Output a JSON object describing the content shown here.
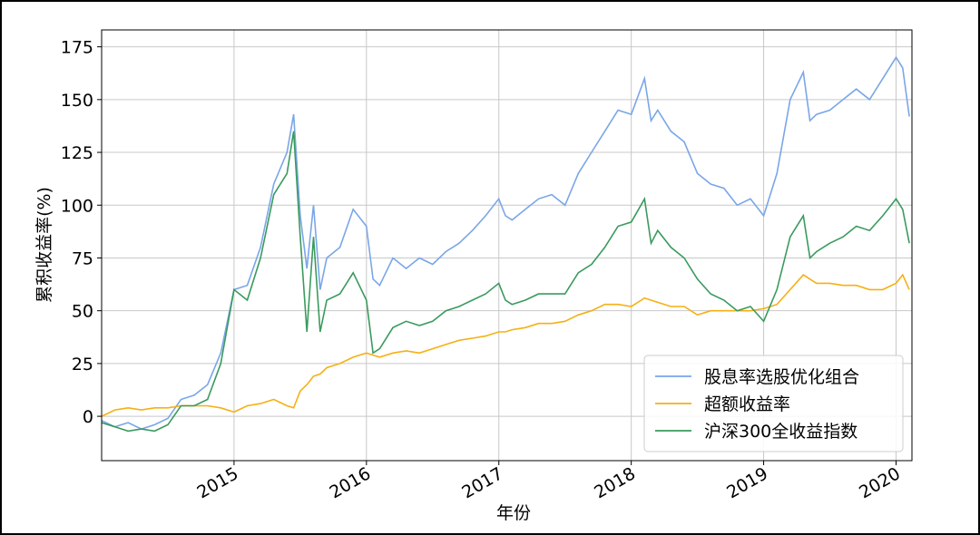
{
  "chart_data": {
    "type": "line",
    "x_label": "年份",
    "y_label": "累积收益率(%)",
    "x": [
      2014.0,
      2014.1,
      2014.2,
      2014.3,
      2014.4,
      2014.5,
      2014.6,
      2014.7,
      2014.8,
      2014.9,
      2015.0,
      2015.1,
      2015.2,
      2015.3,
      2015.4,
      2015.45,
      2015.5,
      2015.55,
      2015.6,
      2015.65,
      2015.7,
      2015.8,
      2015.9,
      2016.0,
      2016.05,
      2016.1,
      2016.2,
      2016.3,
      2016.4,
      2016.5,
      2016.6,
      2016.7,
      2016.8,
      2016.9,
      2017.0,
      2017.05,
      2017.1,
      2017.2,
      2017.3,
      2017.4,
      2017.5,
      2017.6,
      2017.7,
      2017.8,
      2017.9,
      2018.0,
      2018.1,
      2018.15,
      2018.2,
      2018.3,
      2018.4,
      2018.5,
      2018.6,
      2018.7,
      2018.8,
      2018.9,
      2019.0,
      2019.1,
      2019.2,
      2019.3,
      2019.35,
      2019.4,
      2019.5,
      2019.6,
      2019.7,
      2019.8,
      2019.9,
      2020.0,
      2020.05,
      2020.1
    ],
    "series": [
      {
        "name": "股息率选股优化组合",
        "color": "#7aa6e8",
        "values": [
          -2,
          -5,
          -3,
          -6,
          -4,
          -1,
          8,
          10,
          15,
          30,
          60,
          62,
          80,
          110,
          125,
          143,
          95,
          70,
          100,
          60,
          75,
          80,
          98,
          90,
          65,
          62,
          75,
          70,
          75,
          72,
          78,
          82,
          88,
          95,
          103,
          95,
          93,
          98,
          103,
          105,
          100,
          115,
          125,
          135,
          145,
          143,
          160,
          140,
          145,
          135,
          130,
          115,
          110,
          108,
          100,
          103,
          95,
          115,
          150,
          163,
          140,
          143,
          145,
          150,
          155,
          150,
          160,
          170,
          165,
          142
        ]
      },
      {
        "name": "超额收益率",
        "color": "#f5b014",
        "values": [
          0,
          3,
          4,
          3,
          4,
          4,
          5,
          5,
          5,
          4,
          2,
          5,
          6,
          8,
          5,
          4,
          12,
          15,
          19,
          20,
          23,
          25,
          28,
          30,
          29,
          28,
          30,
          31,
          30,
          32,
          34,
          36,
          37,
          38,
          40,
          40,
          41,
          42,
          44,
          44,
          45,
          48,
          50,
          53,
          53,
          52,
          56,
          55,
          54,
          52,
          52,
          48,
          50,
          50,
          50,
          50,
          51,
          53,
          60,
          67,
          65,
          63,
          63,
          62,
          62,
          60,
          60,
          63,
          67,
          60
        ]
      },
      {
        "name": "沪深300全收益指数",
        "color": "#3a9a5e",
        "values": [
          -3,
          -5,
          -7,
          -6,
          -7,
          -4,
          5,
          5,
          8,
          25,
          60,
          55,
          75,
          105,
          115,
          135,
          85,
          40,
          85,
          40,
          55,
          58,
          68,
          55,
          30,
          32,
          42,
          45,
          43,
          45,
          50,
          52,
          55,
          58,
          63,
          55,
          53,
          55,
          58,
          58,
          58,
          68,
          72,
          80,
          90,
          92,
          103,
          82,
          88,
          80,
          75,
          65,
          58,
          55,
          50,
          52,
          45,
          60,
          85,
          95,
          75,
          78,
          82,
          85,
          90,
          88,
          95,
          103,
          98,
          82
        ]
      }
    ],
    "xlim": [
      2014.0,
      2020.12
    ],
    "ylim": [
      -21,
      183
    ],
    "xticks": [
      2015,
      2016,
      2017,
      2018,
      2019,
      2020
    ],
    "yticks": [
      0,
      25,
      50,
      75,
      100,
      125,
      150,
      175
    ],
    "grid": true,
    "legend": "lower right"
  }
}
